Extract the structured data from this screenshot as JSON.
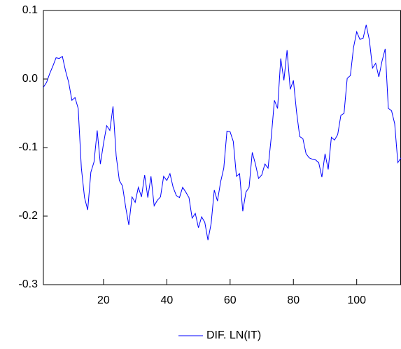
{
  "chart_data": {
    "type": "line",
    "x": [
      1,
      2,
      3,
      4,
      5,
      6,
      7,
      8,
      9,
      10,
      11,
      12,
      13,
      14,
      15,
      16,
      17,
      18,
      19,
      20,
      21,
      22,
      23,
      24,
      25,
      26,
      27,
      28,
      29,
      30,
      31,
      32,
      33,
      34,
      35,
      36,
      37,
      38,
      39,
      40,
      41,
      42,
      43,
      44,
      45,
      46,
      47,
      48,
      49,
      50,
      51,
      52,
      53,
      54,
      55,
      56,
      57,
      58,
      59,
      60,
      61,
      62,
      63,
      64,
      65,
      66,
      67,
      68,
      69,
      70,
      71,
      72,
      73,
      74,
      75,
      76,
      77,
      78,
      79,
      80,
      81,
      82,
      83,
      84,
      85,
      86,
      87,
      88,
      89,
      90,
      91,
      92,
      93,
      94,
      95,
      96,
      97,
      98,
      99,
      100,
      101,
      102,
      103,
      104,
      105,
      106,
      107,
      108,
      109,
      110,
      111,
      112,
      113,
      114
    ],
    "series": [
      {
        "name": "DIF. LN(IT)",
        "color": "#0000ff",
        "values": [
          -0.012,
          -0.005,
          0.008,
          0.019,
          0.031,
          0.03,
          0.033,
          0.012,
          -0.005,
          -0.031,
          -0.027,
          -0.043,
          -0.13,
          -0.173,
          -0.191,
          -0.136,
          -0.121,
          -0.075,
          -0.124,
          -0.094,
          -0.068,
          -0.075,
          -0.04,
          -0.112,
          -0.148,
          -0.156,
          -0.187,
          -0.213,
          -0.172,
          -0.18,
          -0.158,
          -0.172,
          -0.14,
          -0.173,
          -0.142,
          -0.185,
          -0.177,
          -0.172,
          -0.142,
          -0.148,
          -0.138,
          -0.158,
          -0.17,
          -0.173,
          -0.158,
          -0.165,
          -0.173,
          -0.203,
          -0.196,
          -0.217,
          -0.201,
          -0.209,
          -0.235,
          -0.211,
          -0.162,
          -0.178,
          -0.15,
          -0.13,
          -0.076,
          -0.077,
          -0.091,
          -0.142,
          -0.138,
          -0.193,
          -0.165,
          -0.158,
          -0.107,
          -0.124,
          -0.145,
          -0.14,
          -0.124,
          -0.13,
          -0.085,
          -0.031,
          -0.043,
          0.03,
          -0.002,
          0.042,
          -0.015,
          -0.002,
          -0.048,
          -0.084,
          -0.087,
          -0.109,
          -0.115,
          -0.117,
          -0.118,
          -0.122,
          -0.143,
          -0.109,
          -0.132,
          -0.085,
          -0.089,
          -0.081,
          -0.053,
          -0.05,
          0.001,
          0.005,
          0.046,
          0.069,
          0.058,
          0.059,
          0.079,
          0.057,
          0.016,
          0.023,
          0.003,
          0.026,
          0.044,
          -0.043,
          -0.046,
          -0.065,
          -0.122,
          -0.115
        ]
      }
    ],
    "xlim": [
      1,
      114
    ],
    "xticks": [
      20,
      40,
      60,
      80,
      100
    ],
    "ylim": [
      -0.3,
      0.1
    ],
    "yticks": [
      {
        "value": -0.3,
        "label": "-0.3"
      },
      {
        "value": -0.2,
        "label": "-0.2"
      },
      {
        "value": -0.1,
        "label": "-0.1"
      },
      {
        "value": 0,
        "label": "0.0"
      },
      {
        "value": 0.1,
        "label": "0.1"
      }
    ],
    "legend": "bottom"
  }
}
